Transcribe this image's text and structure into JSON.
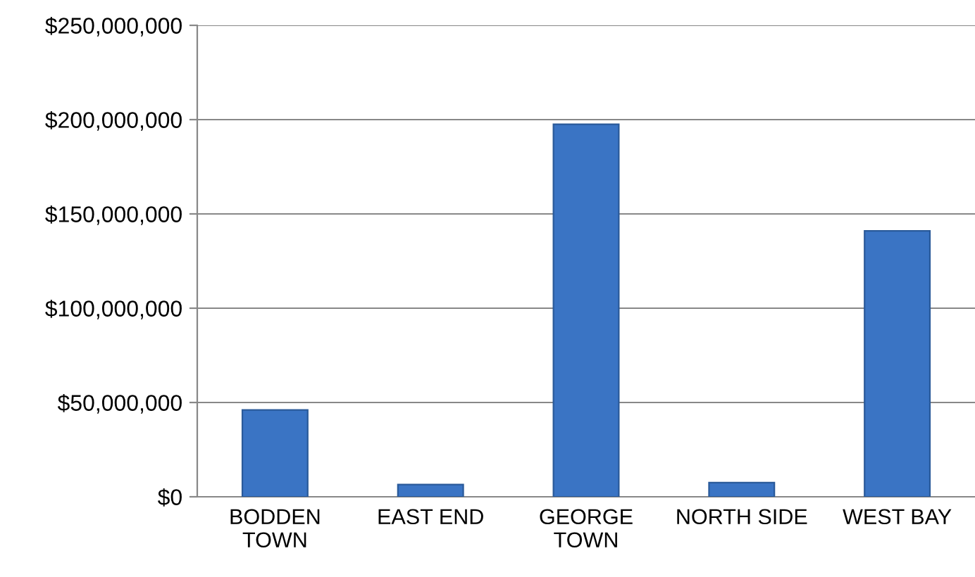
{
  "chart_data": {
    "type": "bar",
    "categories": [
      "BODDEN\nTOWN",
      "EAST END",
      "GEORGE\nTOWN",
      "NORTH SIDE",
      "WEST BAY"
    ],
    "values": [
      46000000,
      6500000,
      197500000,
      7500000,
      141000000
    ],
    "color": "#3a74c4",
    "ylim": [
      0,
      250000000
    ],
    "yticks": [
      {
        "value": 0,
        "label": "$0"
      },
      {
        "value": 50000000,
        "label": "$50,000,000"
      },
      {
        "value": 100000000,
        "label": "$100,000,000"
      },
      {
        "value": 150000000,
        "label": "$150,000,000"
      },
      {
        "value": 200000000,
        "label": "$200,000,000"
      },
      {
        "value": 250000000,
        "label": "$250,000,000"
      }
    ],
    "grid": "y",
    "legend": false
  }
}
